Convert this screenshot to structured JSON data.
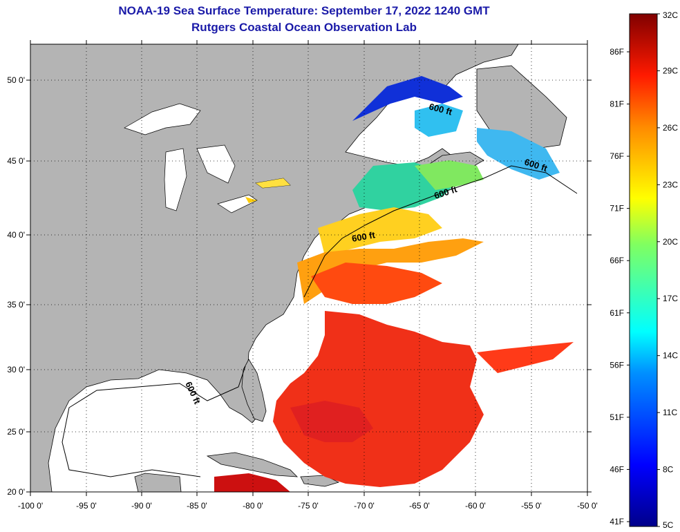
{
  "header": {
    "title": "NOAA-19 Sea Surface Temperature:  September 17, 2022 1240 GMT",
    "subtitle": "Rutgers Coastal Ocean Observation Lab"
  },
  "map": {
    "lon_ticks": [
      "-100 0'",
      "-95 0'",
      "-90 0'",
      "-85 0'",
      "-80 0'",
      "-75 0'",
      "-70 0'",
      "-65 0'",
      "-60 0'",
      "-55 0'",
      "-50 0'"
    ],
    "lat_ticks": [
      "50 0'",
      "45 0'",
      "40 0'",
      "35 0'",
      "30 0'",
      "25 0'",
      "20 0'"
    ],
    "contour_labels": [
      "600 ft",
      "600 ft",
      "600 ft",
      "600 ft",
      "600 ft"
    ],
    "land_color": "#b4b4b4",
    "nodata_color": "#ffffff"
  },
  "colorbar": {
    "celsius": [
      "32C",
      "29C",
      "26C",
      "23C",
      "20C",
      "17C",
      "14C",
      "11C",
      "8C",
      "5C"
    ],
    "fahrenheit": [
      "86F",
      "81F",
      "76F",
      "71F",
      "66F",
      "61F",
      "56F",
      "51F",
      "46F",
      "41F"
    ],
    "top_color": "#800000",
    "bottom_color": "#00008a"
  }
}
